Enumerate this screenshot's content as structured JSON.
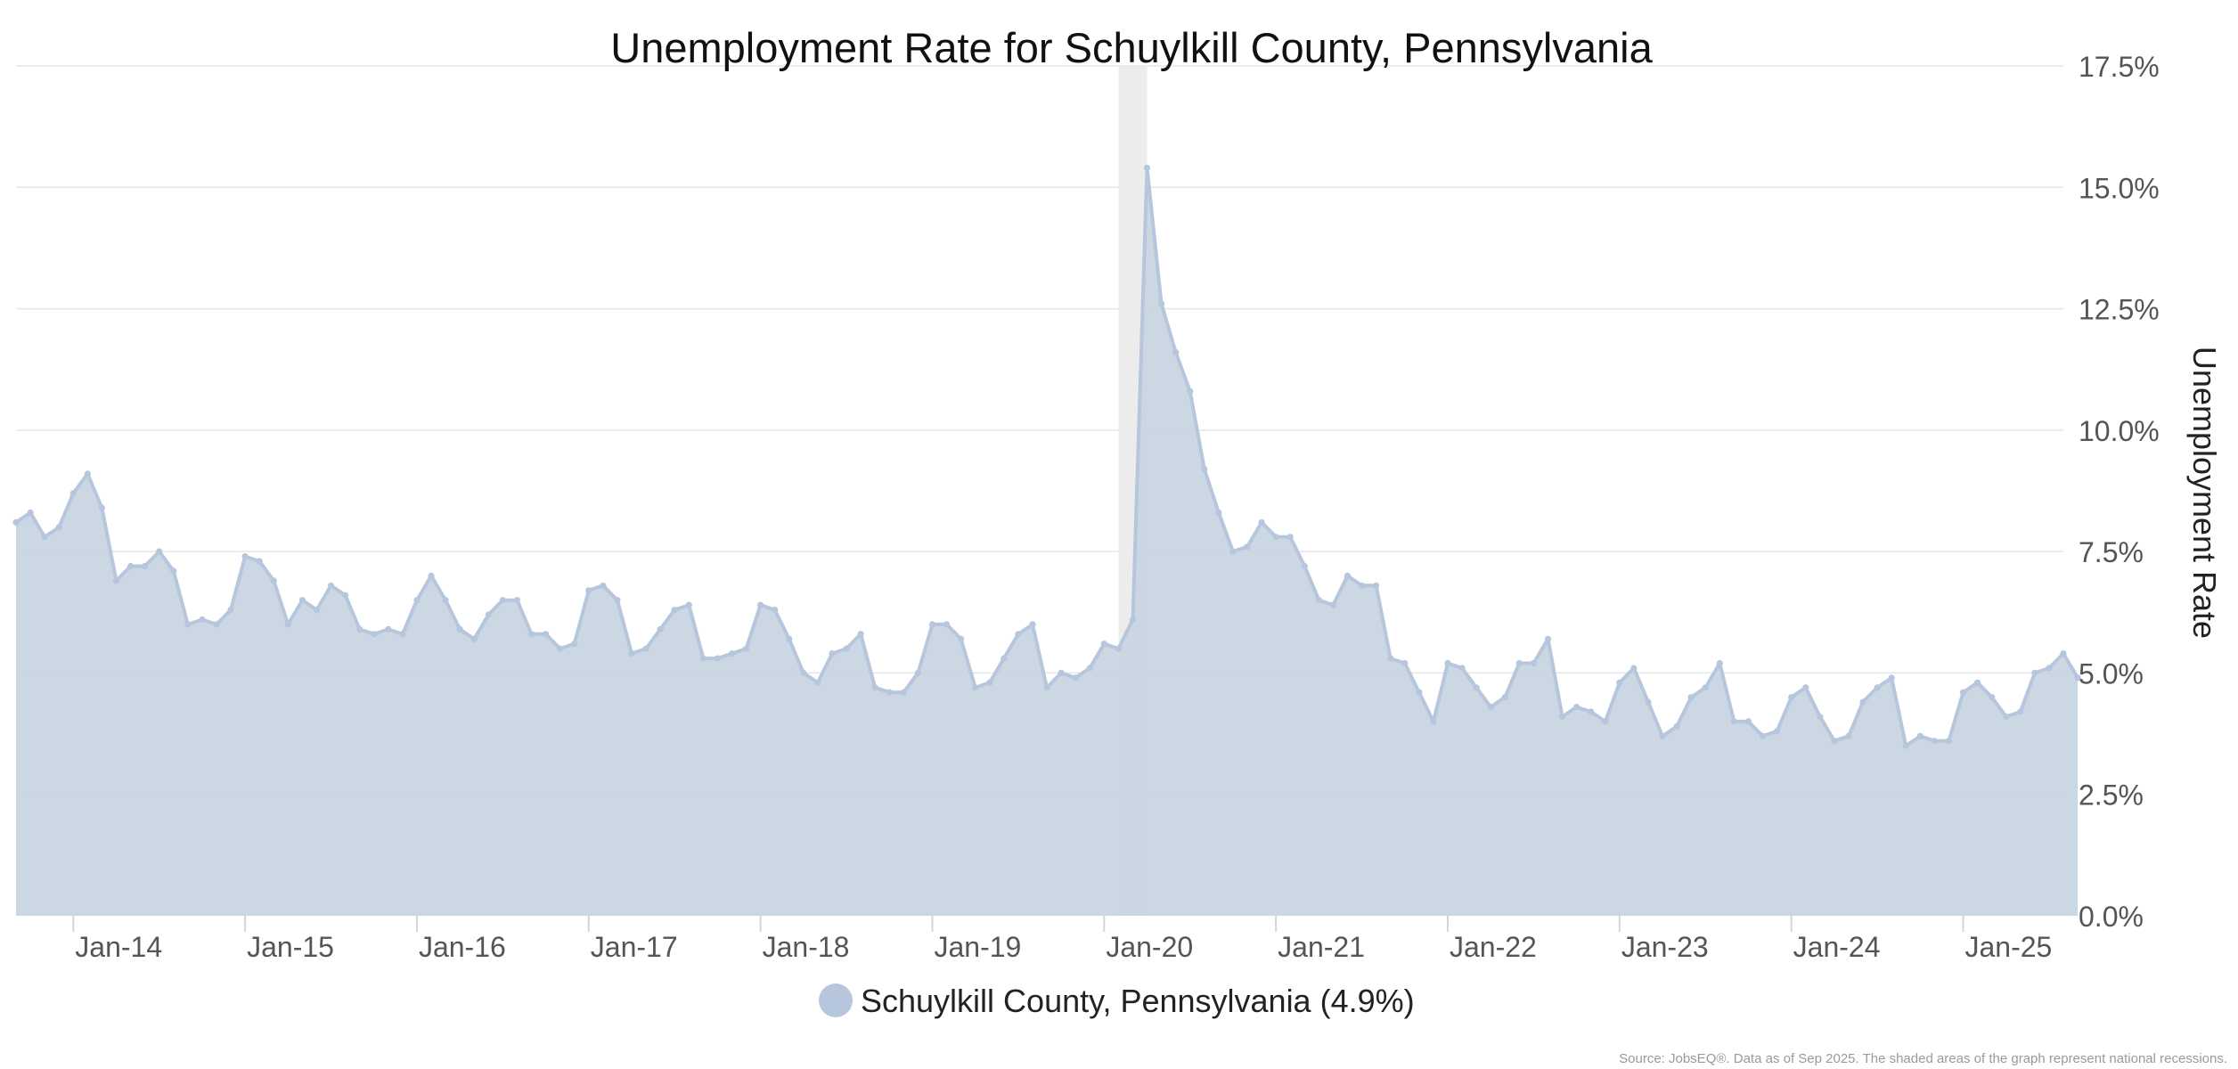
{
  "source_note": "Source: JobsEQ®. Data as of Sep 2025. The shaded areas of the graph represent national recessions.",
  "colors": {
    "series": "#b6c6dc",
    "fill": "#c9d5e3",
    "recession": "#ececec",
    "grid": "#e6e6e6"
  },
  "chart_data": {
    "type": "area",
    "title": "Unemployment Rate for Schuylkill County, Pennsylvania",
    "ylabel": "Unemployment Rate",
    "xlabel": "",
    "ylim": [
      0,
      17.5
    ],
    "y_ticks": [
      0,
      2.5,
      5.0,
      7.5,
      10.0,
      12.5,
      15.0,
      17.5
    ],
    "y_tick_labels": [
      "0.0%",
      "2.5%",
      "5.0%",
      "7.5%",
      "10.0%",
      "12.5%",
      "15.0%",
      "17.5%"
    ],
    "x_start": "2013-09",
    "x_end": "2025-08",
    "x_ticks": [
      "2014-01",
      "2015-01",
      "2016-01",
      "2017-01",
      "2018-01",
      "2019-01",
      "2020-01",
      "2021-01",
      "2022-01",
      "2023-01",
      "2024-01",
      "2025-01"
    ],
    "x_tick_labels": [
      "Jan-14",
      "Jan-15",
      "Jan-16",
      "Jan-17",
      "Jan-18",
      "Jan-19",
      "Jan-20",
      "Jan-21",
      "Jan-22",
      "Jan-23",
      "Jan-24",
      "Jan-25"
    ],
    "recession": {
      "start": "2020-02",
      "end": "2020-04"
    },
    "grid": true,
    "legend_position": "bottom-center",
    "series": [
      {
        "name": "Schuylkill County, Pennsylvania (4.9%)",
        "points": [
          [
            "2013-09",
            8.1
          ],
          [
            "2013-10",
            8.3
          ],
          [
            "2013-11",
            7.8
          ],
          [
            "2013-12",
            8.0
          ],
          [
            "2014-01",
            8.7
          ],
          [
            "2014-02",
            9.1
          ],
          [
            "2014-03",
            8.4
          ],
          [
            "2014-04",
            6.9
          ],
          [
            "2014-05",
            7.2
          ],
          [
            "2014-06",
            7.2
          ],
          [
            "2014-07",
            7.5
          ],
          [
            "2014-08",
            7.1
          ],
          [
            "2014-09",
            6.0
          ],
          [
            "2014-10",
            6.1
          ],
          [
            "2014-11",
            6.0
          ],
          [
            "2014-12",
            6.3
          ],
          [
            "2015-01",
            7.4
          ],
          [
            "2015-02",
            7.3
          ],
          [
            "2015-03",
            6.9
          ],
          [
            "2015-04",
            6.0
          ],
          [
            "2015-05",
            6.5
          ],
          [
            "2015-06",
            6.3
          ],
          [
            "2015-07",
            6.8
          ],
          [
            "2015-08",
            6.6
          ],
          [
            "2015-09",
            5.9
          ],
          [
            "2015-10",
            5.8
          ],
          [
            "2015-11",
            5.9
          ],
          [
            "2015-12",
            5.8
          ],
          [
            "2016-01",
            6.5
          ],
          [
            "2016-02",
            7.0
          ],
          [
            "2016-03",
            6.5
          ],
          [
            "2016-04",
            5.9
          ],
          [
            "2016-05",
            5.7
          ],
          [
            "2016-06",
            6.2
          ],
          [
            "2016-07",
            6.5
          ],
          [
            "2016-08",
            6.5
          ],
          [
            "2016-09",
            5.8
          ],
          [
            "2016-10",
            5.8
          ],
          [
            "2016-11",
            5.5
          ],
          [
            "2016-12",
            5.6
          ],
          [
            "2017-01",
            6.7
          ],
          [
            "2017-02",
            6.8
          ],
          [
            "2017-03",
            6.5
          ],
          [
            "2017-04",
            5.4
          ],
          [
            "2017-05",
            5.5
          ],
          [
            "2017-06",
            5.9
          ],
          [
            "2017-07",
            6.3
          ],
          [
            "2017-08",
            6.4
          ],
          [
            "2017-09",
            5.3
          ],
          [
            "2017-10",
            5.3
          ],
          [
            "2017-11",
            5.4
          ],
          [
            "2017-12",
            5.5
          ],
          [
            "2018-01",
            6.4
          ],
          [
            "2018-02",
            6.3
          ],
          [
            "2018-03",
            5.7
          ],
          [
            "2018-04",
            5.0
          ],
          [
            "2018-05",
            4.8
          ],
          [
            "2018-06",
            5.4
          ],
          [
            "2018-07",
            5.5
          ],
          [
            "2018-08",
            5.8
          ],
          [
            "2018-09",
            4.7
          ],
          [
            "2018-10",
            4.6
          ],
          [
            "2018-11",
            4.6
          ],
          [
            "2018-12",
            5.0
          ],
          [
            "2019-01",
            6.0
          ],
          [
            "2019-02",
            6.0
          ],
          [
            "2019-03",
            5.7
          ],
          [
            "2019-04",
            4.7
          ],
          [
            "2019-05",
            4.8
          ],
          [
            "2019-06",
            5.3
          ],
          [
            "2019-07",
            5.8
          ],
          [
            "2019-08",
            6.0
          ],
          [
            "2019-09",
            4.7
          ],
          [
            "2019-10",
            5.0
          ],
          [
            "2019-11",
            4.9
          ],
          [
            "2019-12",
            5.1
          ],
          [
            "2020-01",
            5.6
          ],
          [
            "2020-02",
            5.5
          ],
          [
            "2020-03",
            6.1
          ],
          [
            "2020-04",
            15.4
          ],
          [
            "2020-05",
            12.6
          ],
          [
            "2020-06",
            11.6
          ],
          [
            "2020-07",
            10.8
          ],
          [
            "2020-08",
            9.2
          ],
          [
            "2020-09",
            8.3
          ],
          [
            "2020-10",
            7.5
          ],
          [
            "2020-11",
            7.6
          ],
          [
            "2020-12",
            8.1
          ],
          [
            "2021-01",
            7.8
          ],
          [
            "2021-02",
            7.8
          ],
          [
            "2021-03",
            7.2
          ],
          [
            "2021-04",
            6.5
          ],
          [
            "2021-05",
            6.4
          ],
          [
            "2021-06",
            7.0
          ],
          [
            "2021-07",
            6.8
          ],
          [
            "2021-08",
            6.8
          ],
          [
            "2021-09",
            5.3
          ],
          [
            "2021-10",
            5.2
          ],
          [
            "2021-11",
            4.6
          ],
          [
            "2021-12",
            4.0
          ],
          [
            "2022-01",
            5.2
          ],
          [
            "2022-02",
            5.1
          ],
          [
            "2022-03",
            4.7
          ],
          [
            "2022-04",
            4.3
          ],
          [
            "2022-05",
            4.5
          ],
          [
            "2022-06",
            5.2
          ],
          [
            "2022-07",
            5.2
          ],
          [
            "2022-08",
            5.7
          ],
          [
            "2022-09",
            4.1
          ],
          [
            "2022-10",
            4.3
          ],
          [
            "2022-11",
            4.2
          ],
          [
            "2022-12",
            4.0
          ],
          [
            "2023-01",
            4.8
          ],
          [
            "2023-02",
            5.1
          ],
          [
            "2023-03",
            4.4
          ],
          [
            "2023-04",
            3.7
          ],
          [
            "2023-05",
            3.9
          ],
          [
            "2023-06",
            4.5
          ],
          [
            "2023-07",
            4.7
          ],
          [
            "2023-08",
            5.2
          ],
          [
            "2023-09",
            4.0
          ],
          [
            "2023-10",
            4.0
          ],
          [
            "2023-11",
            3.7
          ],
          [
            "2023-12",
            3.8
          ],
          [
            "2024-01",
            4.5
          ],
          [
            "2024-02",
            4.7
          ],
          [
            "2024-03",
            4.1
          ],
          [
            "2024-04",
            3.6
          ],
          [
            "2024-05",
            3.7
          ],
          [
            "2024-06",
            4.4
          ],
          [
            "2024-07",
            4.7
          ],
          [
            "2024-08",
            4.9
          ],
          [
            "2024-09",
            3.5
          ],
          [
            "2024-10",
            3.7
          ],
          [
            "2024-11",
            3.6
          ],
          [
            "2024-12",
            3.6
          ],
          [
            "2025-01",
            4.6
          ],
          [
            "2025-02",
            4.8
          ],
          [
            "2025-03",
            4.5
          ],
          [
            "2025-04",
            4.1
          ],
          [
            "2025-05",
            4.2
          ],
          [
            "2025-06",
            5.0
          ],
          [
            "2025-07",
            5.1
          ],
          [
            "2025-08",
            5.4
          ],
          [
            "2025-09",
            4.9
          ]
        ]
      }
    ]
  }
}
